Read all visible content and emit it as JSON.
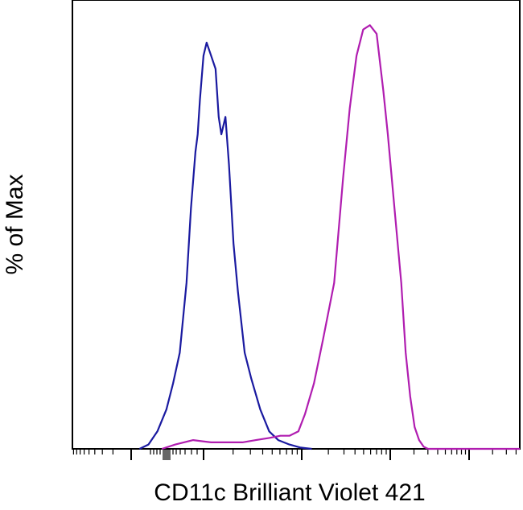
{
  "chart_data": {
    "type": "line",
    "title": "",
    "xlabel": "CD11c Brilliant Violet 421",
    "ylabel": "% of Max",
    "x_scale": "biexponential",
    "xlim": [
      0,
      100
    ],
    "ylim": [
      0,
      100
    ],
    "x_unit_note": "",
    "grid": false,
    "legend": "none",
    "series": [
      {
        "color": "#1a1aa0",
        "x": [
          15.0,
          17.0,
          19.0,
          21.0,
          22.5,
          24.0,
          25.5,
          26.5,
          27.5,
          28.0,
          28.5,
          29.3,
          30.0,
          31.0,
          32.0,
          32.7,
          33.3,
          34.2,
          35.0,
          36.0,
          37.0,
          38.5,
          40.0,
          42.0,
          44.0,
          46.0,
          48.5,
          51.0,
          53.5
        ],
        "y": [
          0,
          1,
          4,
          9,
          15,
          22,
          38,
          55,
          68,
          72,
          80,
          90,
          93,
          90,
          87,
          76,
          72,
          76,
          65,
          47,
          36,
          22,
          16,
          9,
          4,
          2,
          1,
          0.3,
          0
        ]
      },
      {
        "color": "#b01db0",
        "x": [
          20.0,
          23.0,
          27.0,
          31.0,
          35.0,
          38.0,
          41.0,
          44.0,
          46.5,
          48.5,
          50.5,
          52.0,
          54.0,
          56.0,
          58.5,
          60.5,
          62.0,
          63.5,
          65.0,
          66.5,
          68.0,
          69.5,
          70.5,
          72.0,
          73.5,
          74.5,
          75.5,
          76.5,
          77.5,
          78.5,
          79.5,
          100.0
        ],
        "y": [
          0,
          1,
          2,
          1.5,
          1.5,
          1.5,
          2,
          2.5,
          3,
          3,
          4,
          8,
          15,
          25,
          38,
          62,
          78,
          90,
          96,
          97,
          95,
          82,
          72,
          55,
          38,
          22,
          12,
          5,
          2,
          0.5,
          0,
          0
        ]
      }
    ]
  }
}
